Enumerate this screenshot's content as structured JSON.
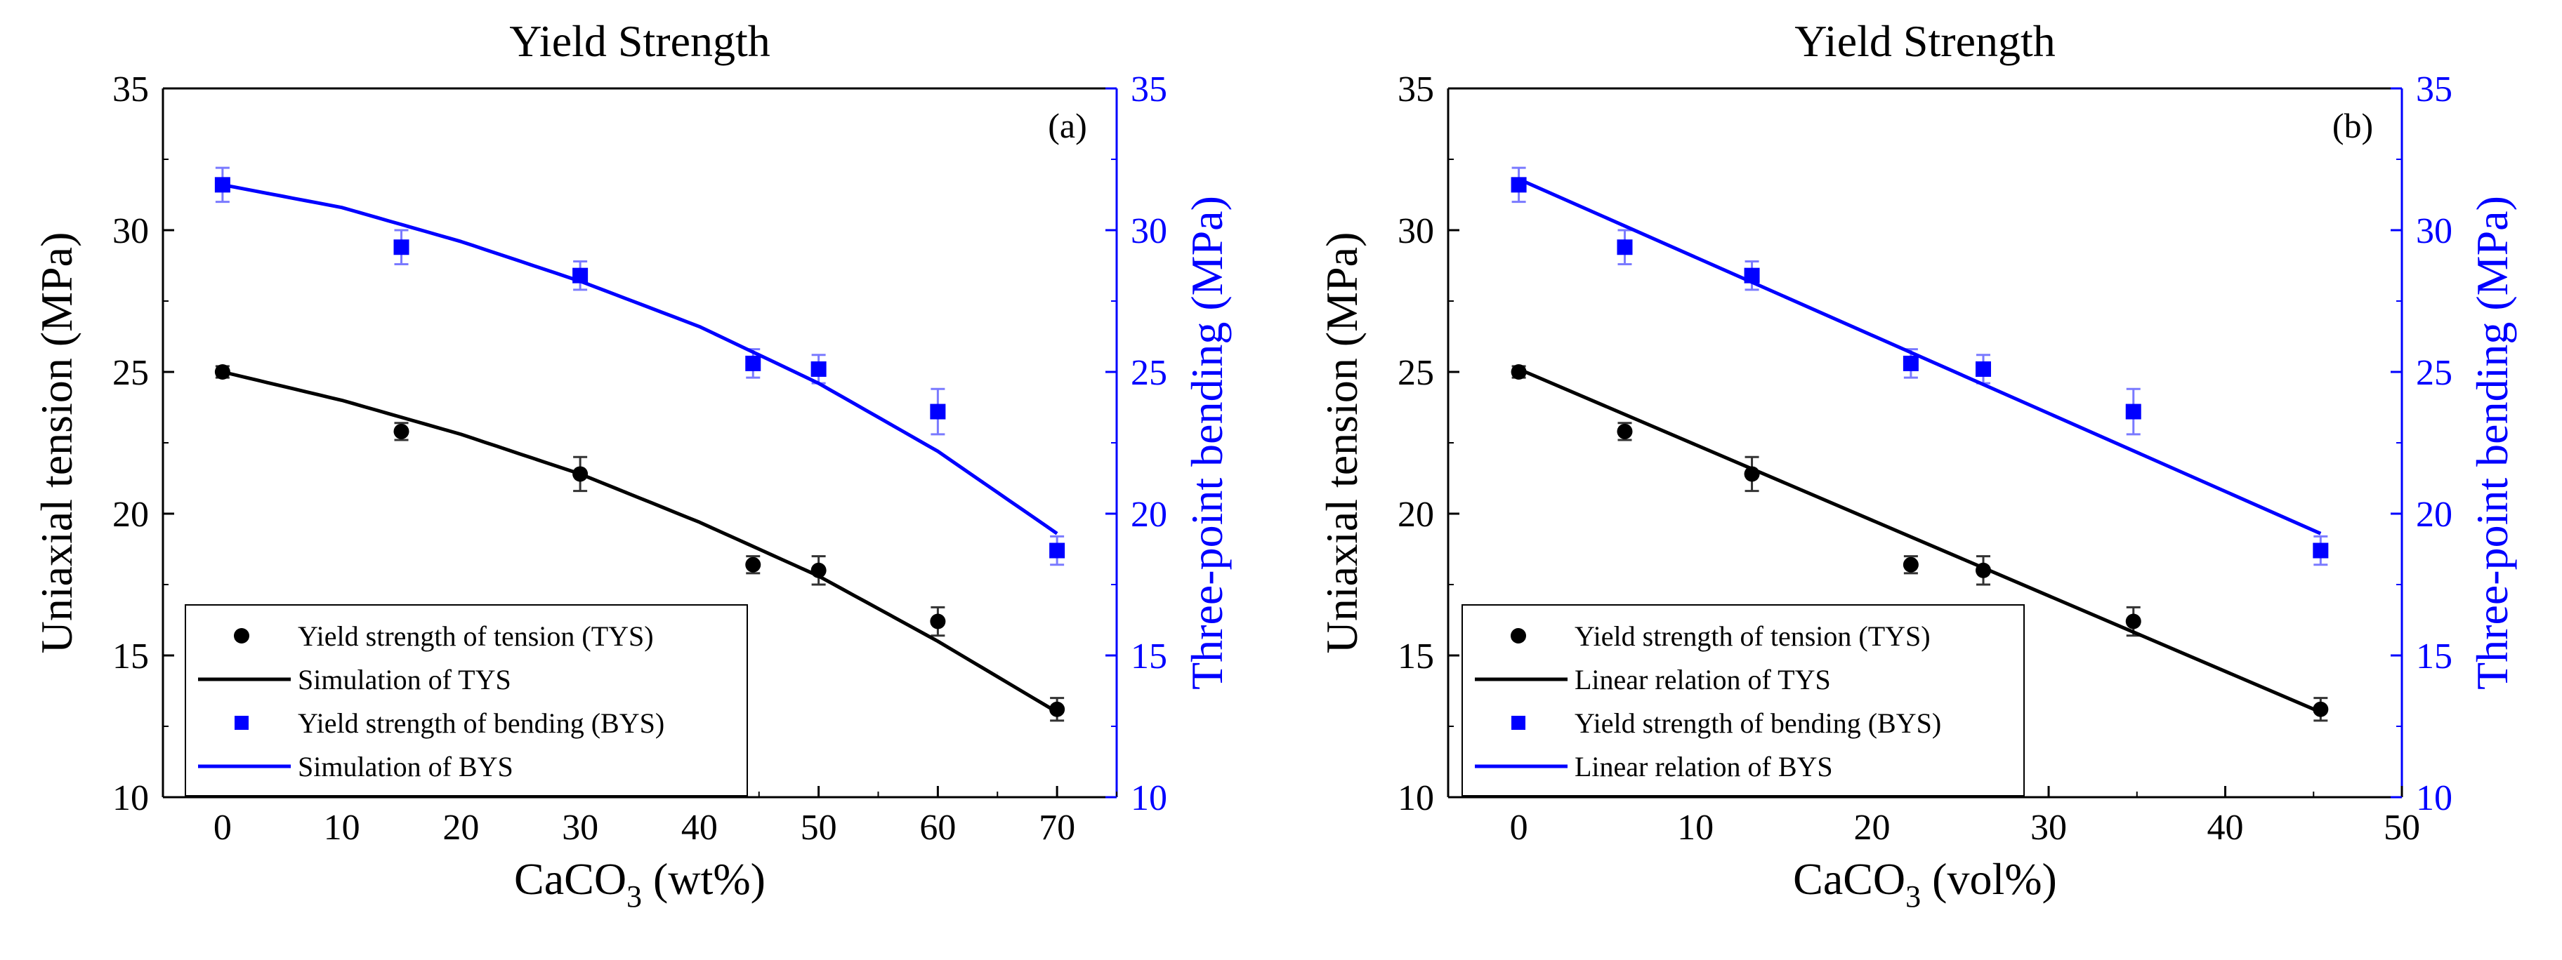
{
  "chart_data": [
    {
      "panel": "a",
      "type": "scatter",
      "title": "Yield Strength",
      "panel_label": "(a)",
      "xlabel": {
        "base": "CaCO",
        "sub": "3",
        "rest": " (wt%)"
      },
      "ylabel": "Uniaxial tension (MPa)",
      "y2label": "Three-point bending (MPa)",
      "xlim": [
        -5,
        75
      ],
      "ylim": [
        10,
        35
      ],
      "y2lim": [
        10,
        35
      ],
      "xticks": [
        0,
        10,
        20,
        30,
        40,
        50,
        60,
        70
      ],
      "yticks": [
        10,
        15,
        20,
        25,
        30,
        35
      ],
      "y2ticks": [
        10,
        15,
        20,
        25,
        30,
        35
      ],
      "grid": false,
      "legend_position": "bottom-left",
      "series": [
        {
          "name": "Yield strength of tension (TYS)",
          "kind": "points",
          "marker": "circle",
          "axis": "left",
          "color": "#000000",
          "x": [
            0,
            15,
            30,
            44.5,
            50,
            60,
            70
          ],
          "y": [
            25.0,
            22.9,
            21.4,
            18.2,
            18.0,
            16.2,
            13.1
          ],
          "err": [
            0.2,
            0.3,
            0.6,
            0.3,
            0.5,
            0.5,
            0.4
          ]
        },
        {
          "name": "Simulation of TYS",
          "kind": "line",
          "axis": "left",
          "color": "#000000",
          "x": [
            0,
            10,
            20,
            30,
            40,
            50,
            60,
            70
          ],
          "y": [
            25.0,
            24.0,
            22.8,
            21.4,
            19.7,
            17.8,
            15.5,
            13.0
          ]
        },
        {
          "name": "Yield strength of bending (BYS)",
          "kind": "points",
          "marker": "square",
          "axis": "right",
          "color": "#0000ff",
          "x": [
            0,
            15,
            30,
            44.5,
            50,
            60,
            70
          ],
          "y": [
            31.6,
            29.4,
            28.4,
            25.3,
            25.1,
            23.6,
            18.7
          ],
          "err": [
            0.6,
            0.6,
            0.5,
            0.5,
            0.5,
            0.8,
            0.5
          ]
        },
        {
          "name": "Simulation of BYS",
          "kind": "line",
          "axis": "right",
          "color": "#0000ff",
          "x": [
            0,
            10,
            20,
            30,
            40,
            50,
            60,
            70
          ],
          "y": [
            31.6,
            30.8,
            29.6,
            28.2,
            26.6,
            24.6,
            22.2,
            19.3
          ]
        }
      ]
    },
    {
      "panel": "b",
      "type": "scatter",
      "title": "Yield Strength",
      "panel_label": "(b)",
      "xlabel": {
        "base": "CaCO",
        "sub": "3",
        "rest": " (vol%)"
      },
      "ylabel": "Uniaxial tension (MPa)",
      "y2label": "Three-point bending (MPa)",
      "xlim": [
        -4,
        50
      ],
      "ylim": [
        10,
        35
      ],
      "y2lim": [
        10,
        35
      ],
      "xticks": [
        0,
        10,
        20,
        30,
        40,
        50
      ],
      "yticks": [
        10,
        15,
        20,
        25,
        30,
        35
      ],
      "y2ticks": [
        10,
        15,
        20,
        25,
        30,
        35
      ],
      "grid": false,
      "legend_position": "bottom-left",
      "series": [
        {
          "name": "Yield strength of tension (TYS)",
          "kind": "points",
          "marker": "circle",
          "axis": "left",
          "color": "#000000",
          "x": [
            0,
            6,
            13.2,
            22.2,
            26.3,
            34.8,
            45.4
          ],
          "y": [
            25.0,
            22.9,
            21.4,
            18.2,
            18.0,
            16.2,
            13.1
          ],
          "err": [
            0.2,
            0.3,
            0.6,
            0.3,
            0.5,
            0.5,
            0.4
          ]
        },
        {
          "name": "Linear relation of TYS",
          "kind": "line",
          "axis": "left",
          "color": "#000000",
          "x": [
            0,
            45.4
          ],
          "y": [
            25.1,
            13.0
          ]
        },
        {
          "name": "Yield strength of bending (BYS)",
          "kind": "points",
          "marker": "square",
          "axis": "right",
          "color": "#0000ff",
          "x": [
            0,
            6,
            13.2,
            22.2,
            26.3,
            34.8,
            45.4
          ],
          "y": [
            31.6,
            29.4,
            28.4,
            25.3,
            25.1,
            23.6,
            18.7
          ],
          "err": [
            0.6,
            0.6,
            0.5,
            0.5,
            0.5,
            0.8,
            0.5
          ]
        },
        {
          "name": "Linear relation of BYS",
          "kind": "line",
          "axis": "right",
          "color": "#0000ff",
          "x": [
            0,
            45.4
          ],
          "y": [
            31.8,
            19.3
          ]
        }
      ]
    }
  ]
}
